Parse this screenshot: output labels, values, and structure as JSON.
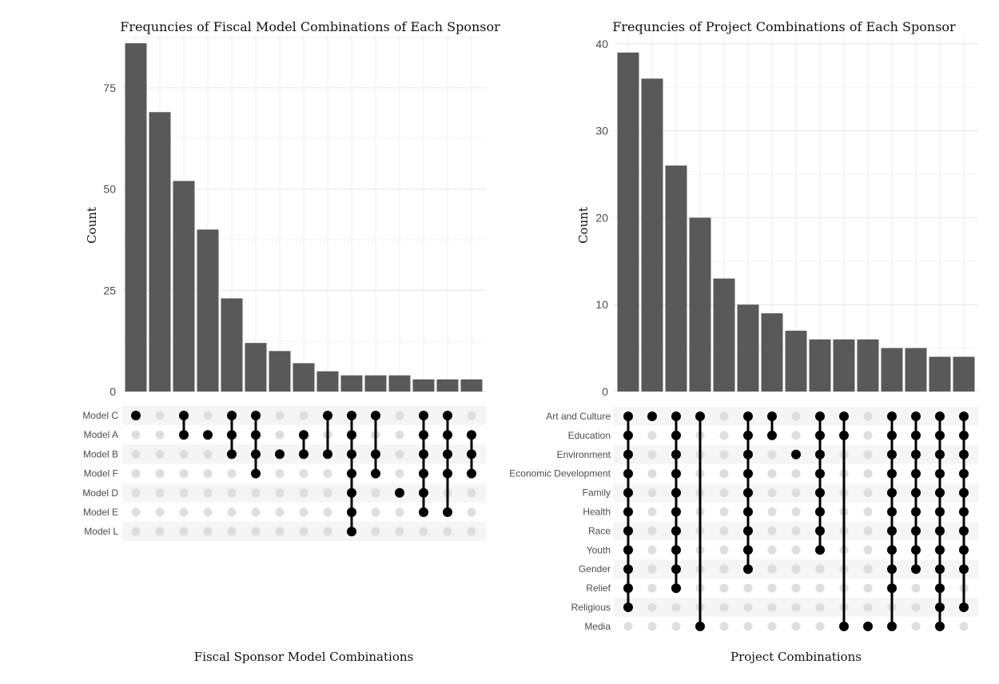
{
  "chart_data": [
    {
      "type": "bar",
      "title": "Frequncies of Fiscal Model Combinations of Each Sponsor",
      "ylabel": "Count",
      "xlabel": "Fiscal Sponsor Model Combinations",
      "ylim": [
        0,
        88
      ],
      "yticks": [
        0,
        25,
        50,
        75
      ],
      "grid": true,
      "sets": [
        "Model C",
        "Model A",
        "Model B",
        "Model F",
        "Model D",
        "Model E",
        "Model L"
      ],
      "values": [
        86,
        69,
        52,
        40,
        23,
        12,
        10,
        7,
        5,
        4,
        4,
        4,
        3,
        3,
        3
      ],
      "combinations": [
        [
          "Model C"
        ],
        [],
        [
          "Model C",
          "Model A"
        ],
        [
          "Model A"
        ],
        [
          "Model C",
          "Model A",
          "Model B"
        ],
        [
          "Model C",
          "Model A",
          "Model B",
          "Model F"
        ],
        [
          "Model B"
        ],
        [
          "Model A",
          "Model B"
        ],
        [
          "Model C",
          "Model B"
        ],
        [
          "Model C",
          "Model A",
          "Model B",
          "Model F",
          "Model D",
          "Model E",
          "Model L"
        ],
        [
          "Model C",
          "Model B",
          "Model F"
        ],
        [
          "Model D"
        ],
        [
          "Model C",
          "Model A",
          "Model B",
          "Model F",
          "Model D",
          "Model E"
        ],
        [
          "Model C",
          "Model A",
          "Model B",
          "Model F",
          "Model E"
        ],
        [
          "Model A",
          "Model B",
          "Model F"
        ]
      ]
    },
    {
      "type": "bar",
      "title": "Frequncies of Project Combinations of Each Sponsor",
      "ylabel": "Count",
      "xlabel": "Project Combinations",
      "ylim": [
        0,
        41
      ],
      "yticks": [
        0,
        10,
        20,
        30,
        40
      ],
      "grid": true,
      "sets": [
        "Art and Culture",
        "Education",
        "Environment",
        "Economic Development",
        "Family",
        "Health",
        "Race",
        "Youth",
        "Gender",
        "Relief",
        "Religious",
        "Media"
      ],
      "values": [
        39,
        36,
        26,
        20,
        13,
        10,
        9,
        7,
        6,
        6,
        6,
        5,
        5,
        4,
        4
      ],
      "combinations": [
        [
          "Art and Culture",
          "Education",
          "Environment",
          "Economic Development",
          "Family",
          "Health",
          "Race",
          "Youth",
          "Gender",
          "Relief",
          "Religious"
        ],
        [
          "Art and Culture"
        ],
        [
          "Art and Culture",
          "Education",
          "Environment",
          "Economic Development",
          "Family",
          "Health",
          "Race",
          "Youth",
          "Gender",
          "Relief"
        ],
        [
          "Art and Culture",
          "Media"
        ],
        [],
        [
          "Art and Culture",
          "Education",
          "Environment",
          "Economic Development",
          "Family",
          "Health",
          "Race",
          "Youth",
          "Gender"
        ],
        [
          "Art and Culture",
          "Education"
        ],
        [
          "Environment"
        ],
        [
          "Art and Culture",
          "Education",
          "Environment",
          "Economic Development",
          "Family",
          "Health",
          "Race",
          "Youth"
        ],
        [
          "Art and Culture",
          "Education",
          "Media"
        ],
        [
          "Media"
        ],
        [
          "Art and Culture",
          "Education",
          "Environment",
          "Economic Development",
          "Family",
          "Health",
          "Race",
          "Youth",
          "Gender",
          "Relief",
          "Media"
        ],
        [
          "Art and Culture",
          "Education",
          "Environment",
          "Economic Development",
          "Family",
          "Health",
          "Race",
          "Youth",
          "Gender"
        ],
        [
          "Art and Culture",
          "Education",
          "Environment",
          "Economic Development",
          "Family",
          "Health",
          "Race",
          "Youth",
          "Gender",
          "Relief",
          "Religious",
          "Media"
        ],
        [
          "Art and Culture",
          "Education",
          "Environment",
          "Economic Development",
          "Family",
          "Health",
          "Race",
          "Youth",
          "Gender",
          "Religious"
        ]
      ]
    }
  ]
}
